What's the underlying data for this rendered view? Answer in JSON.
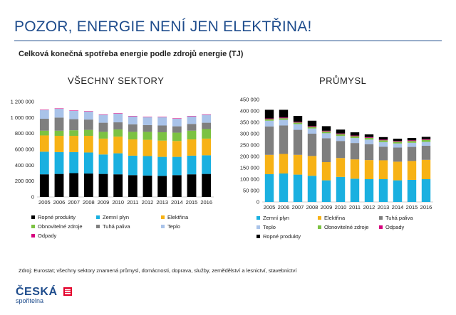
{
  "title": "POZOR, ENERGIE NENÍ JEN ELEKTŘINA!",
  "subtitle": "Celková konečná spotřeba energie podle zdrojů energie (TJ)",
  "colors": {
    "ropne": "#000000",
    "zemni": "#1ab0e0",
    "elektrina": "#f7b215",
    "obnovitelne": "#7cc242",
    "tuha": "#7f7f7f",
    "teplo": "#a9c3e9",
    "odpady": "#d6007e",
    "title": "#1e4c8c"
  },
  "chart_data": [
    {
      "type": "bar",
      "stacked": true,
      "title": "VŠECHNY SEKTORY",
      "categories": [
        "2005",
        "2006",
        "2007",
        "2008",
        "2009",
        "2010",
        "2011",
        "2012",
        "2013",
        "2014",
        "2015",
        "2016"
      ],
      "ylim": [
        0,
        1200000
      ],
      "yticks": [
        "0",
        "200 000",
        "400 000",
        "600 000",
        "800 000",
        "1 000 000",
        "1 200 000"
      ],
      "series": [
        {
          "key": "ropne",
          "name": "Ropné produkty",
          "values": [
            285000,
            290000,
            300000,
            295000,
            290000,
            285000,
            275000,
            270000,
            265000,
            275000,
            285000,
            290000
          ]
        },
        {
          "key": "zemni",
          "name": "Zemní plyn",
          "values": [
            285000,
            275000,
            265000,
            265000,
            245000,
            265000,
            245000,
            245000,
            240000,
            230000,
            235000,
            235000
          ]
        },
        {
          "key": "elektrina",
          "name": "Elektřina",
          "values": [
            205000,
            205000,
            205000,
            210000,
            200000,
            210000,
            205000,
            205000,
            205000,
            200000,
            205000,
            210000
          ]
        },
        {
          "key": "obnovitelne",
          "name": "Obnovitelné zdroje",
          "values": [
            60000,
            65000,
            70000,
            75000,
            85000,
            90000,
            95000,
            100000,
            105000,
            105000,
            110000,
            120000
          ]
        },
        {
          "key": "tuha",
          "name": "Tuhá paliva",
          "values": [
            150000,
            165000,
            140000,
            130000,
            115000,
            90000,
            95000,
            85000,
            85000,
            80000,
            85000,
            80000
          ]
        },
        {
          "key": "teplo",
          "name": "Teplo",
          "values": [
            110000,
            110000,
            105000,
            100000,
            100000,
            110000,
            100000,
            100000,
            105000,
            95000,
            95000,
            100000
          ]
        },
        {
          "key": "odpady",
          "name": "Odpady",
          "values": [
            5000,
            5000,
            5000,
            5000,
            5000,
            5000,
            5000,
            5000,
            5000,
            5000,
            5000,
            5000
          ]
        }
      ],
      "legend": [
        "ropne",
        "zemni",
        "elektrina",
        "obnovitelne",
        "tuha",
        "teplo",
        "odpady"
      ]
    },
    {
      "type": "bar",
      "stacked": true,
      "title": "PRŮMYSL",
      "categories": [
        "2005",
        "2006",
        "2007",
        "2008",
        "2009",
        "2010",
        "2011",
        "2012",
        "2013",
        "2014",
        "2015",
        "2016"
      ],
      "ylim": [
        0,
        450000
      ],
      "yticks": [
        "0",
        "50 000",
        "100 000",
        "150 000",
        "200 000",
        "250 000",
        "300 000",
        "350 000",
        "400 000",
        "450 000"
      ],
      "series": [
        {
          "key": "zemni",
          "name": "Zemní plyn",
          "values": [
            122000,
            125000,
            120000,
            115000,
            95000,
            110000,
            102000,
            100000,
            100000,
            95000,
            97000,
            100000
          ]
        },
        {
          "key": "elektrina",
          "name": "Elektřina",
          "values": [
            85000,
            86000,
            87000,
            87000,
            80000,
            83000,
            85000,
            84000,
            83000,
            82000,
            83000,
            85000
          ]
        },
        {
          "key": "tuha",
          "name": "Tuhá paliva",
          "values": [
            125000,
            125000,
            110000,
            98000,
            105000,
            75000,
            72000,
            70000,
            60000,
            62000,
            62000,
            62000
          ]
        },
        {
          "key": "teplo",
          "name": "Teplo",
          "values": [
            25000,
            25000,
            25000,
            23000,
            22000,
            22000,
            22000,
            20000,
            20000,
            18000,
            18000,
            17000
          ]
        },
        {
          "key": "obnovitelne",
          "name": "Obnovitelné zdroje",
          "values": [
            7000,
            7000,
            7000,
            7000,
            8000,
            8000,
            8000,
            8000,
            8000,
            8000,
            8000,
            9000
          ]
        },
        {
          "key": "odpady",
          "name": "Odpady",
          "values": [
            3000,
            3000,
            3000,
            3000,
            3000,
            3000,
            3000,
            3000,
            3000,
            3000,
            3000,
            3000
          ]
        },
        {
          "key": "ropne",
          "name": "Ropné produkty",
          "values": [
            38000,
            34000,
            26000,
            24000,
            20000,
            17000,
            14000,
            12000,
            11000,
            10000,
            10000,
            10000
          ]
        }
      ],
      "legend": [
        "zemni",
        "elektrina",
        "tuha",
        "teplo",
        "obnovitelne",
        "odpady",
        "ropne"
      ]
    }
  ],
  "footnote": "Zdroj: Eurostat; všechny sektory znamená průmysl, domácnosti, doprava, služby, zemědělství a lesnictví, stavebnictví",
  "logo": {
    "name": "ČESKÁ",
    "sub": "spořitelna"
  }
}
